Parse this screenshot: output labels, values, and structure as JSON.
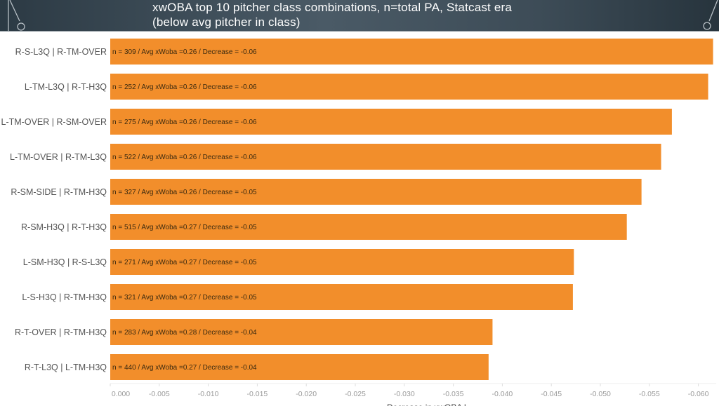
{
  "header": {
    "title_line1": "xwOBA top 10 pitcher class combinations, n=total PA, Statcast era",
    "title_line2": "(below avg pitcher in class)"
  },
  "chart_data": {
    "type": "bar",
    "orientation": "horizontal",
    "title": "xwOBA top 10 pitcher class combinations, n=total PA, Statcast era (below avg pitcher in class)",
    "xlabel": "Decrease in xwOBA l...",
    "ylabel": "",
    "xlim": [
      0,
      -0.0625
    ],
    "grid": false,
    "bar_color": "#f28e2b",
    "categories": [
      "R-S-L3Q | R-TM-OVER",
      "L-TM-L3Q | R-T-H3Q",
      "L-TM-OVER | R-SM-OVER",
      "L-TM-OVER | R-TM-L3Q",
      "R-SM-SIDE | R-TM-H3Q",
      "R-SM-H3Q | R-T-H3Q",
      "L-SM-H3Q | R-S-L3Q",
      "L-S-H3Q | R-TM-H3Q",
      "R-T-OVER | R-TM-H3Q",
      "R-T-L3Q | L-TM-H3Q"
    ],
    "values": [
      -0.0615,
      -0.061,
      -0.0573,
      -0.0562,
      -0.0542,
      -0.0527,
      -0.0473,
      -0.0472,
      -0.039,
      -0.0386
    ],
    "data_labels": [
      "n = 309 / Avg xWoba =0.26 / Decrease =  -0.06",
      "n = 252 / Avg xWoba =0.26 / Decrease =  -0.06",
      "n = 275 / Avg xWoba =0.26 / Decrease =  -0.06",
      "n = 522 / Avg xWoba =0.26 / Decrease =  -0.06",
      "n = 327 / Avg xWoba =0.26 / Decrease =  -0.05",
      "n = 515 / Avg xWoba =0.27 / Decrease =  -0.05",
      "n = 271 / Avg xWoba =0.27 / Decrease =  -0.05",
      "n = 321 / Avg xWoba =0.27 / Decrease =  -0.05",
      "n = 283 / Avg xWoba =0.28 / Decrease =  -0.04",
      "n = 440 / Avg xWoba =0.27 / Decrease =  -0.04"
    ],
    "ticks": [
      0,
      -0.005,
      -0.01,
      -0.015,
      -0.02,
      -0.025,
      -0.03,
      -0.035,
      -0.04,
      -0.045,
      -0.05,
      -0.055,
      -0.06
    ],
    "tick_labels": [
      "0.000",
      "-0.005",
      "-0.010",
      "-0.015",
      "-0.020",
      "-0.025",
      "-0.030",
      "-0.035",
      "-0.040",
      "-0.045",
      "-0.050",
      "-0.055",
      "-0.060"
    ]
  }
}
